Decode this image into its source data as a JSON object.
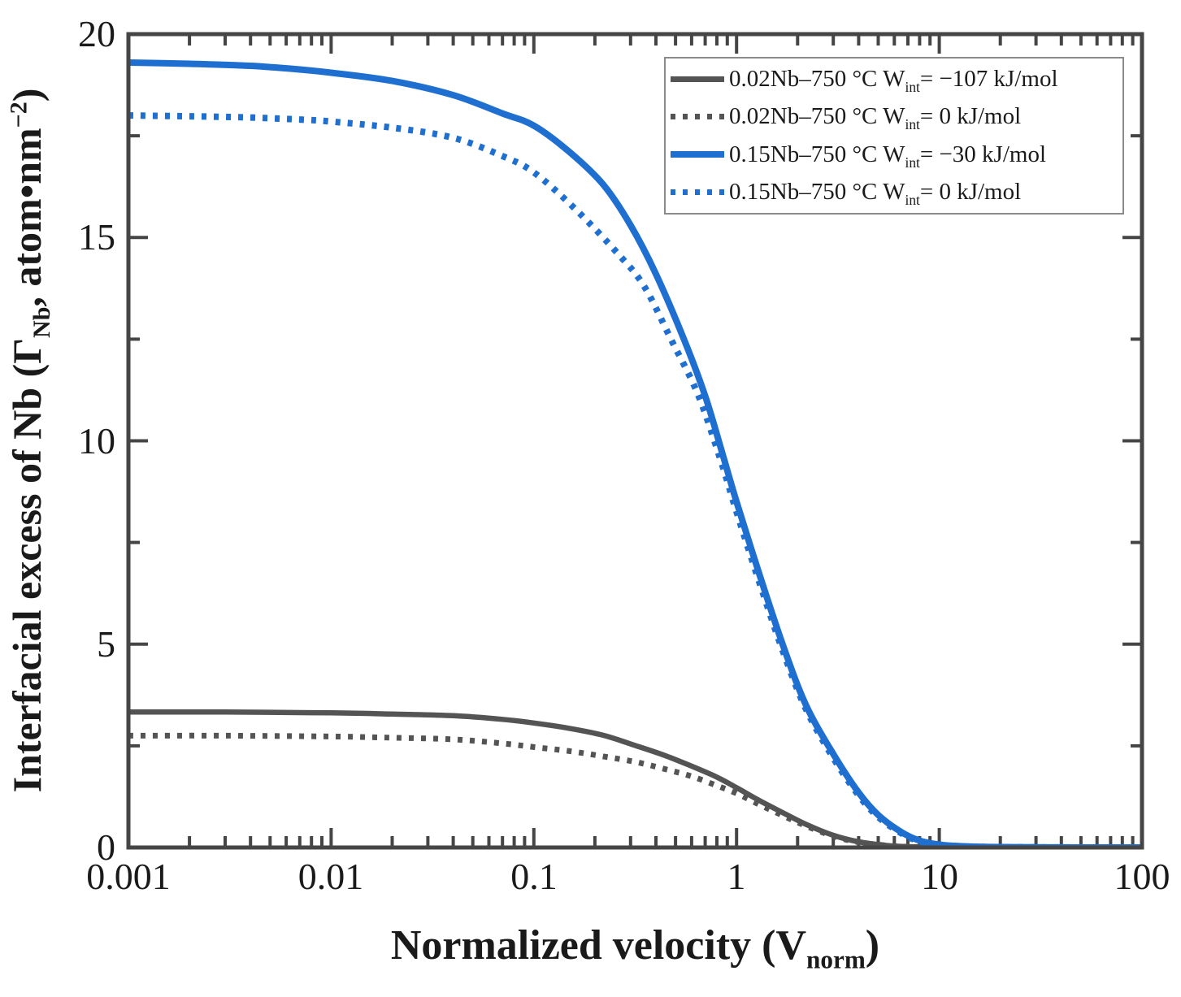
{
  "figure": {
    "background": "#ffffff",
    "text_color": "#1a1a1a",
    "frame_color": "#454545",
    "legend_border_color": "#8a8a8a"
  },
  "axes": {
    "x_title": {
      "prefix": "Normalized velocity (V",
      "sub": "norm",
      "suffix": ")"
    },
    "y_title": {
      "p1": "Interfacial excess of Nb (Γ",
      "sub": "Nb",
      "p2": ", atom•nm",
      "sup": "−2",
      "p3": ")"
    }
  },
  "chart_data": {
    "type": "line",
    "x_scale": "log",
    "y_scale": "linear",
    "xlim": [
      0.001,
      100
    ],
    "ylim": [
      0,
      20
    ],
    "x_ticks": [
      0.001,
      0.01,
      0.1,
      1,
      10,
      100
    ],
    "x_tick_labels": [
      "0.001",
      "0.01",
      "0.1",
      "1",
      "10",
      "100"
    ],
    "x_minor_mantissas": [
      2,
      3,
      4,
      5,
      6,
      7,
      8,
      9
    ],
    "y_ticks": [
      0,
      5,
      10,
      15,
      20
    ],
    "y_tick_labels": [
      "0",
      "5",
      "10",
      "15",
      "20"
    ],
    "y_minor_ticks": [
      2.5,
      7.5,
      12.5,
      17.5
    ],
    "grid": false,
    "legend_position": "top-right",
    "xlabel": "Normalized velocity (V_norm)",
    "ylabel": "Interfacial excess of Nb (Γ_Nb, atom·nm^−2)",
    "series": [
      {
        "name": "0.02Nb–750 °C W_int = −107 kJ/mol",
        "label": {
          "prefix": "0.02Nb–750 °C W",
          "sub": "int",
          "suffix": "= −107 kJ/mol"
        },
        "color": "#545454",
        "style": "solid",
        "line_width": 6.5,
        "points": [
          [
            0.001,
            3.33
          ],
          [
            0.003,
            3.33
          ],
          [
            0.01,
            3.31
          ],
          [
            0.02,
            3.28
          ],
          [
            0.04,
            3.24
          ],
          [
            0.07,
            3.15
          ],
          [
            0.1,
            3.06
          ],
          [
            0.15,
            2.93
          ],
          [
            0.22,
            2.76
          ],
          [
            0.32,
            2.5
          ],
          [
            0.45,
            2.25
          ],
          [
            0.6,
            2.0
          ],
          [
            0.8,
            1.73
          ],
          [
            1.0,
            1.47
          ],
          [
            1.3,
            1.15
          ],
          [
            1.7,
            0.85
          ],
          [
            2.2,
            0.57
          ],
          [
            3.0,
            0.3
          ],
          [
            4.0,
            0.14
          ],
          [
            5.5,
            0.05
          ],
          [
            7.0,
            0.02
          ],
          [
            9.0,
            0.01
          ],
          [
            12,
            0
          ],
          [
            100,
            0
          ]
        ]
      },
      {
        "name": "0.02Nb–750 °C W_int = 0 kJ/mol",
        "label": {
          "prefix": "0.02Nb–750 °C W",
          "sub": "int",
          "suffix": "= 0 kJ/mol"
        },
        "color": "#545454",
        "style": "dotted",
        "line_width": 7,
        "points": [
          [
            0.001,
            2.75
          ],
          [
            0.003,
            2.75
          ],
          [
            0.01,
            2.73
          ],
          [
            0.02,
            2.7
          ],
          [
            0.04,
            2.66
          ],
          [
            0.07,
            2.56
          ],
          [
            0.1,
            2.47
          ],
          [
            0.15,
            2.37
          ],
          [
            0.22,
            2.24
          ],
          [
            0.32,
            2.1
          ],
          [
            0.45,
            1.92
          ],
          [
            0.6,
            1.75
          ],
          [
            0.8,
            1.52
          ],
          [
            1.0,
            1.33
          ],
          [
            1.3,
            1.05
          ],
          [
            1.7,
            0.78
          ],
          [
            2.2,
            0.53
          ],
          [
            3.0,
            0.28
          ],
          [
            4.0,
            0.13
          ],
          [
            5.5,
            0.05
          ],
          [
            7.0,
            0.02
          ],
          [
            9.0,
            0.01
          ],
          [
            12,
            0
          ],
          [
            100,
            0
          ]
        ]
      },
      {
        "name": "0.15Nb–750 °C W_int = −30 kJ/mol",
        "label": {
          "prefix": "0.15Nb–750 °C W",
          "sub": "int",
          "suffix": "= −30 kJ/mol"
        },
        "color": "#1f6fd0",
        "style": "solid",
        "line_width": 8,
        "points": [
          [
            0.001,
            19.3
          ],
          [
            0.002,
            19.27
          ],
          [
            0.004,
            19.22
          ],
          [
            0.007,
            19.13
          ],
          [
            0.01,
            19.05
          ],
          [
            0.02,
            18.85
          ],
          [
            0.04,
            18.5
          ],
          [
            0.07,
            18.05
          ],
          [
            0.1,
            17.75
          ],
          [
            0.15,
            17.1
          ],
          [
            0.22,
            16.3
          ],
          [
            0.3,
            15.3
          ],
          [
            0.4,
            14.1
          ],
          [
            0.55,
            12.5
          ],
          [
            0.7,
            11.1
          ],
          [
            0.85,
            9.7
          ],
          [
            1.0,
            8.5
          ],
          [
            1.3,
            6.7
          ],
          [
            1.7,
            4.95
          ],
          [
            2.2,
            3.5
          ],
          [
            3.0,
            2.3
          ],
          [
            4.0,
            1.35
          ],
          [
            5.0,
            0.8
          ],
          [
            6.5,
            0.38
          ],
          [
            8.0,
            0.17
          ],
          [
            10,
            0.07
          ],
          [
            13,
            0.03
          ],
          [
            20,
            0.01
          ],
          [
            50,
            0
          ],
          [
            100,
            0
          ]
        ]
      },
      {
        "name": "0.15Nb–750 °C W_int = 0 kJ/mol",
        "label": {
          "prefix": "0.15Nb–750 °C W",
          "sub": "int",
          "suffix": "= 0 kJ/mol"
        },
        "color": "#1f6fd0",
        "style": "dotted",
        "line_width": 8,
        "points": [
          [
            0.001,
            18.0
          ],
          [
            0.002,
            17.98
          ],
          [
            0.004,
            17.95
          ],
          [
            0.007,
            17.9
          ],
          [
            0.01,
            17.85
          ],
          [
            0.02,
            17.7
          ],
          [
            0.04,
            17.45
          ],
          [
            0.07,
            17.0
          ],
          [
            0.1,
            16.6
          ],
          [
            0.16,
            15.7
          ],
          [
            0.26,
            14.6
          ],
          [
            0.35,
            13.8
          ],
          [
            0.48,
            12.45
          ],
          [
            0.65,
            11.1
          ],
          [
            0.85,
            9.4
          ],
          [
            1.0,
            8.25
          ],
          [
            1.3,
            6.5
          ],
          [
            1.7,
            4.8
          ],
          [
            2.2,
            3.4
          ],
          [
            3.0,
            2.2
          ],
          [
            4.0,
            1.28
          ],
          [
            5.0,
            0.75
          ],
          [
            6.5,
            0.35
          ],
          [
            8.0,
            0.15
          ],
          [
            10,
            0.06
          ],
          [
            13,
            0.02
          ],
          [
            20,
            0.01
          ],
          [
            50,
            0
          ],
          [
            100,
            0
          ]
        ]
      }
    ]
  }
}
